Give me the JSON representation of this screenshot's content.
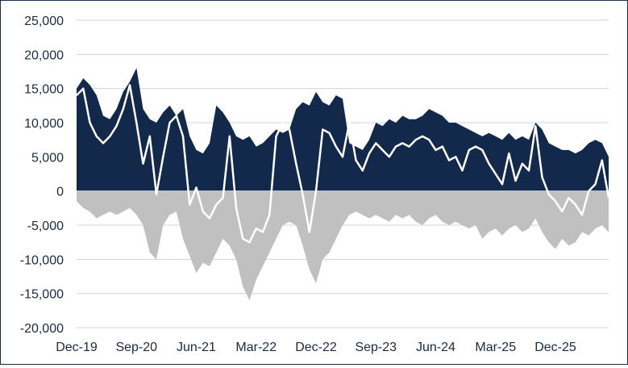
{
  "chart_data": {
    "type": "area",
    "x_tick_labels": [
      "Dec-19",
      "Sep-20",
      "Jun-21",
      "Mar-22",
      "Dec-22",
      "Sep-23",
      "Jun-24",
      "Mar-25",
      "Dec-25"
    ],
    "y_tick_labels": [
      "25,000",
      "20,000",
      "15,000",
      "10,000",
      "5,000",
      "0",
      "-5,000",
      "-10,000",
      "-15,000",
      "-20,000"
    ],
    "ylim": [
      -20000,
      25000
    ],
    "grid": true,
    "legend": "none",
    "x_dates": [
      "2019-12",
      "2020-01",
      "2020-02",
      "2020-03",
      "2020-04",
      "2020-05",
      "2020-06",
      "2020-07",
      "2020-08",
      "2020-09",
      "2020-10",
      "2020-11",
      "2020-12",
      "2021-01",
      "2021-02",
      "2021-03",
      "2021-04",
      "2021-05",
      "2021-06",
      "2021-07",
      "2021-08",
      "2021-09",
      "2021-10",
      "2021-11",
      "2021-12",
      "2022-01",
      "2022-02",
      "2022-03",
      "2022-04",
      "2022-05",
      "2022-06",
      "2022-07",
      "2022-08",
      "2022-09",
      "2022-10",
      "2022-11",
      "2022-12",
      "2023-01",
      "2023-02",
      "2023-03",
      "2023-04",
      "2023-05",
      "2023-06",
      "2023-07",
      "2023-08",
      "2023-09",
      "2023-10",
      "2023-11",
      "2023-12",
      "2024-01",
      "2024-02",
      "2024-03",
      "2024-04",
      "2024-05",
      "2024-06",
      "2024-07",
      "2024-08",
      "2024-09",
      "2024-10",
      "2024-11",
      "2024-12",
      "2025-01",
      "2025-02",
      "2025-03",
      "2025-04",
      "2025-05",
      "2025-06",
      "2025-07",
      "2025-08",
      "2025-09",
      "2025-10",
      "2025-11",
      "2025-12",
      "2026-01",
      "2026-02",
      "2026-03",
      "2026-04",
      "2026-05",
      "2026-06",
      "2026-07",
      "2026-08"
    ],
    "series": [
      {
        "kind": "area-positive",
        "color": "#13294b",
        "values": [
          15000,
          16500,
          15500,
          14000,
          11000,
          10500,
          12000,
          14500,
          16000,
          18000,
          12000,
          10500,
          10000,
          11500,
          12500,
          11000,
          12000,
          8000,
          6000,
          5500,
          7000,
          12500,
          11500,
          10000,
          8000,
          7500,
          8000,
          6500,
          7000,
          8000,
          9000,
          8500,
          9000,
          12000,
          13000,
          12500,
          14500,
          13000,
          12500,
          14000,
          13500,
          7000,
          6500,
          6000,
          7500,
          10000,
          9500,
          10500,
          10000,
          11000,
          10500,
          10500,
          11000,
          12000,
          11500,
          11000,
          10000,
          10000,
          9500,
          9000,
          8500,
          8000,
          8500,
          8000,
          7500,
          8500,
          7500,
          8000,
          7500,
          10000,
          9000,
          7000,
          6500,
          6000,
          6000,
          5500,
          6000,
          7000,
          7500,
          7000,
          5000
        ]
      },
      {
        "kind": "area-negative",
        "color": "#c0c0c0",
        "values": [
          -1500,
          -2500,
          -3000,
          -4000,
          -3500,
          -3000,
          -3500,
          -3000,
          -2500,
          -3500,
          -5000,
          -9000,
          -10000,
          -5000,
          -3500,
          -3000,
          -7000,
          -9500,
          -12000,
          -10500,
          -11000,
          -9000,
          -7000,
          -8000,
          -10000,
          -14000,
          -16000,
          -13000,
          -11000,
          -9000,
          -7000,
          -5000,
          -4500,
          -5000,
          -8000,
          -11500,
          -13500,
          -10000,
          -9000,
          -7000,
          -5000,
          -3500,
          -3000,
          -3500,
          -4000,
          -3500,
          -4000,
          -4500,
          -3500,
          -4000,
          -3500,
          -4500,
          -5000,
          -4000,
          -3500,
          -4500,
          -5000,
          -4500,
          -5000,
          -5500,
          -5000,
          -7000,
          -6000,
          -5500,
          -6500,
          -5500,
          -5000,
          -6000,
          -5500,
          -4000,
          -6000,
          -7500,
          -8500,
          -7000,
          -8000,
          -7500,
          -6000,
          -6500,
          -5500,
          -5000,
          -6000
        ]
      },
      {
        "kind": "line",
        "color": "#ffffff",
        "values": [
          14000,
          15000,
          10000,
          8000,
          7000,
          8000,
          9500,
          12000,
          15500,
          10000,
          4000,
          8000,
          -500,
          5000,
          10000,
          11000,
          8000,
          -2000,
          500,
          -3000,
          -4000,
          -2000,
          -1000,
          8000,
          -2500,
          -7000,
          -7500,
          -5500,
          -6000,
          -3500,
          8000,
          10000,
          9000,
          4000,
          -500,
          -6000,
          0,
          9000,
          8500,
          6500,
          5000,
          10000,
          4500,
          3000,
          5500,
          7000,
          6000,
          5000,
          6500,
          7000,
          6500,
          7500,
          8000,
          7500,
          6000,
          6500,
          4500,
          5000,
          3000,
          6000,
          6500,
          6000,
          4000,
          2500,
          1000,
          5500,
          1500,
          4000,
          3000,
          9500,
          2000,
          -500,
          -1500,
          -3000,
          -1000,
          -2000,
          -3500,
          0,
          1000,
          4500,
          -1000
        ]
      }
    ]
  }
}
